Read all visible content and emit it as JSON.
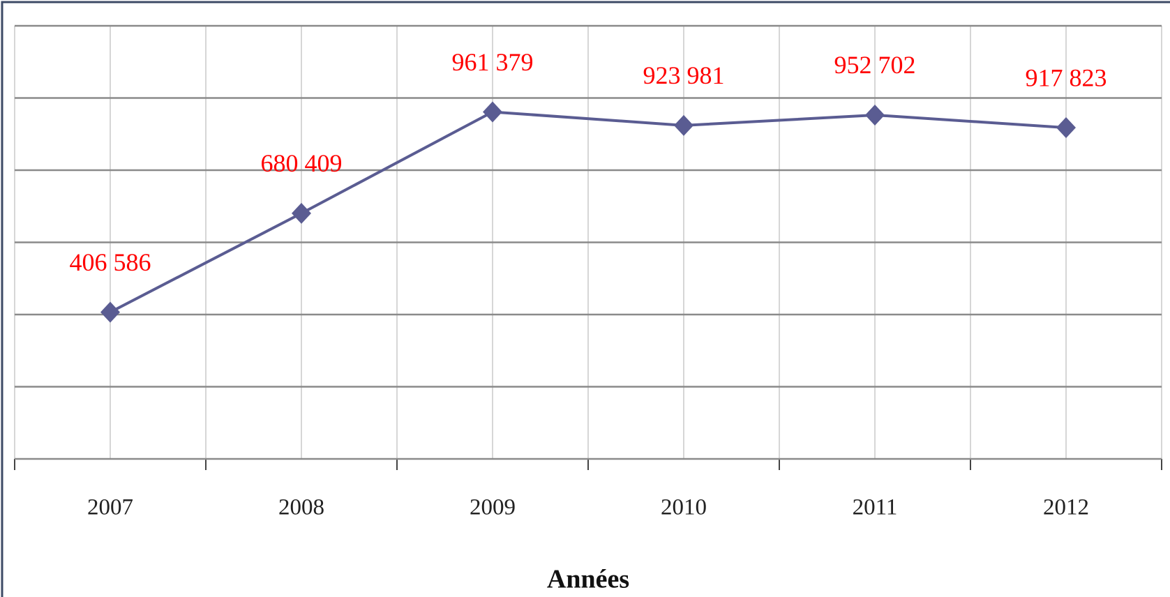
{
  "chart_data": {
    "type": "line",
    "x_label": "Années",
    "categories": [
      "2007",
      "2008",
      "2009",
      "2010",
      "2011",
      "2012"
    ],
    "series": [
      {
        "name": null,
        "color": "#5a5c92",
        "values": [
          406586,
          680409,
          961379,
          923981,
          952702,
          917823
        ],
        "value_labels": [
          "406 586",
          "680 409",
          "961 379",
          "923 981",
          "952 702",
          "917 823"
        ]
      }
    ],
    "ylim": [
      0,
      1200000
    ],
    "yticks": [
      0,
      200000,
      400000,
      600000,
      800000,
      1000000,
      1200000
    ],
    "grid": true
  }
}
